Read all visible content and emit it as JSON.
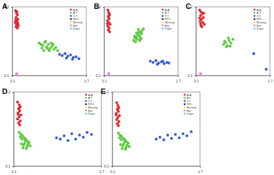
{
  "chart_data": [
    {
      "type": "scatter",
      "title": "A",
      "marker": "circle",
      "grid": false,
      "xlim": [
        0.1,
        1.7
      ],
      "ylim": [
        0.1,
        1.2
      ],
      "xticks": [
        0.1,
        1.7
      ],
      "yticks": [
        0.1,
        1.2
      ],
      "series": [
        {
          "name": "A:A",
          "color": "#e8262b",
          "x": [
            0.17,
            0.19,
            0.21,
            0.18,
            0.22,
            0.2,
            0.16,
            0.19,
            0.23,
            0.18,
            0.21,
            0.2,
            0.17,
            0.22
          ],
          "values": [
            1.14,
            1.1,
            1.07,
            1.03,
            1.0,
            0.97,
            0.95,
            0.92,
            0.9,
            0.88,
            0.86,
            1.12,
            0.99,
            0.94
          ]
        },
        {
          "name": "A:T",
          "color": "#5ccf3a",
          "x": [
            0.68,
            0.72,
            0.76,
            0.8,
            0.84,
            0.88,
            0.92,
            0.96,
            1.0,
            1.04,
            0.74,
            0.82,
            0.9,
            0.98,
            0.78,
            0.86,
            0.94,
            1.08
          ],
          "values": [
            0.62,
            0.6,
            0.58,
            0.63,
            0.56,
            0.6,
            0.54,
            0.57,
            0.52,
            0.55,
            0.54,
            0.65,
            0.5,
            0.6,
            0.5,
            0.53,
            0.62,
            0.5
          ]
        },
        {
          "name": "T:T",
          "color": "#2f5de0",
          "x": [
            1.12,
            1.18,
            1.24,
            1.3,
            1.36,
            1.42,
            1.48,
            1.54,
            1.27,
            1.4
          ],
          "values": [
            0.44,
            0.42,
            0.45,
            0.41,
            0.43,
            0.39,
            0.4,
            0.37,
            0.38,
            0.36
          ]
        },
        {
          "name": "NTC",
          "color": "#1a1a6e",
          "x": [],
          "values": []
        },
        {
          "name": "Missing",
          "color": "#f5e642",
          "x": [],
          "values": []
        },
        {
          "name": "Ref",
          "color": "#f07cf0",
          "x": [
            0.19
          ],
          "values": [
            0.13
          ]
        },
        {
          "name": "Dupe",
          "color": "#3fd6e0",
          "x": [],
          "values": []
        }
      ]
    },
    {
      "type": "scatter",
      "title": "B",
      "marker": "circle",
      "grid": false,
      "xlim": [
        0.1,
        1.7
      ],
      "ylim": [
        0.1,
        1.2
      ],
      "xticks": [
        0.1,
        1.7
      ],
      "yticks": [
        0.1,
        1.2
      ],
      "series": [
        {
          "name": "A:A",
          "color": "#e8262b",
          "x": [
            0.18,
            0.2,
            0.22,
            0.19,
            0.21,
            0.17,
            0.2,
            0.23,
            0.18,
            0.21,
            0.19,
            0.22,
            0.2,
            0.17
          ],
          "values": [
            1.15,
            1.11,
            1.08,
            1.04,
            1.01,
            0.98,
            0.95,
            0.92,
            0.89,
            0.86,
            0.83,
            0.8,
            1.06,
            0.93
          ]
        },
        {
          "name": "A:T",
          "color": "#5ccf3a",
          "x": [
            0.74,
            0.77,
            0.8,
            0.83,
            0.86,
            0.89,
            0.92,
            0.95,
            0.78,
            0.82,
            0.85,
            0.88,
            0.91,
            0.76,
            0.84,
            0.87,
            0.8,
            0.9
          ],
          "values": [
            0.66,
            0.7,
            0.72,
            0.76,
            0.74,
            0.79,
            0.82,
            0.85,
            0.64,
            0.68,
            0.8,
            0.71,
            0.77,
            0.73,
            0.84,
            0.66,
            0.78,
            0.69
          ]
        },
        {
          "name": "T:T",
          "color": "#2f5de0",
          "x": [
            1.1,
            1.16,
            1.22,
            1.28,
            1.34,
            1.4,
            1.46,
            1.5,
            1.25,
            1.37
          ],
          "values": [
            0.33,
            0.31,
            0.34,
            0.3,
            0.32,
            0.29,
            0.31,
            0.3,
            0.28,
            0.33
          ]
        },
        {
          "name": "NTC",
          "color": "#1a1a6e",
          "x": [],
          "values": []
        },
        {
          "name": "Missing",
          "color": "#f5e642",
          "x": [],
          "values": []
        },
        {
          "name": "Ref",
          "color": "#f07cf0",
          "x": [
            0.2
          ],
          "values": [
            0.13
          ]
        },
        {
          "name": "Dupe",
          "color": "#3fd6e0",
          "x": [],
          "values": []
        }
      ]
    },
    {
      "type": "scatter",
      "title": "C",
      "marker": "circle",
      "grid": false,
      "xlim": [
        0.1,
        1.7
      ],
      "ylim": [
        0.1,
        1.2
      ],
      "xticks": [
        0.1,
        1.7
      ],
      "yticks": [
        0.1,
        1.2
      ],
      "series": [
        {
          "name": "A:A",
          "color": "#e8262b",
          "x": [
            0.18,
            0.21,
            0.24,
            0.2,
            0.26,
            0.22,
            0.19,
            0.25,
            0.28,
            0.21,
            0.23,
            0.18,
            0.27,
            0.2
          ],
          "values": [
            1.15,
            1.12,
            1.09,
            1.06,
            1.03,
            1.0,
            0.97,
            0.95,
            0.92,
            0.9,
            0.88,
            1.02,
            1.1,
            0.93
          ]
        },
        {
          "name": "A:T",
          "color": "#5ccf3a",
          "x": [
            0.7,
            0.74,
            0.78,
            0.82,
            0.86,
            0.9,
            0.76,
            0.8,
            0.84,
            0.72
          ],
          "values": [
            0.6,
            0.63,
            0.58,
            0.66,
            0.62,
            0.68,
            0.56,
            0.7,
            0.57,
            0.65
          ]
        },
        {
          "name": "T:T",
          "color": "#2f5de0",
          "x": [
            1.35,
            1.62
          ],
          "values": [
            0.45,
            0.2
          ]
        },
        {
          "name": "NTC",
          "color": "#1a1a6e",
          "x": [],
          "values": []
        },
        {
          "name": "Missing",
          "color": "#f5e642",
          "x": [],
          "values": []
        },
        {
          "name": "Ref",
          "color": "#f07cf0",
          "x": [
            0.2
          ],
          "values": [
            0.13
          ]
        },
        {
          "name": "Dupe",
          "color": "#3fd6e0",
          "x": [],
          "values": []
        }
      ]
    },
    {
      "type": "scatter",
      "title": "D",
      "marker": "circle",
      "grid": false,
      "xlim": [
        0.1,
        1.7
      ],
      "ylim": [
        0.1,
        1.2
      ],
      "xticks": [
        0.1,
        1.7
      ],
      "yticks": [
        0.1,
        1.2
      ],
      "series": [
        {
          "name": "A:A",
          "color": "#e8262b",
          "x": [
            0.17,
            0.2,
            0.22,
            0.19,
            0.21,
            0.18,
            0.23,
            0.2,
            0.17,
            0.22,
            0.19,
            0.21,
            0.2,
            0.18
          ],
          "values": [
            1.05,
            1.01,
            0.98,
            0.95,
            0.92,
            0.89,
            0.86,
            0.83,
            0.8,
            0.77,
            0.74,
            0.71,
            0.96,
            0.87
          ]
        },
        {
          "name": "A:T",
          "color": "#5ccf3a",
          "x": [
            0.2,
            0.23,
            0.26,
            0.29,
            0.32,
            0.35,
            0.38,
            0.24,
            0.28,
            0.31,
            0.34,
            0.22,
            0.27,
            0.3,
            0.36,
            0.25,
            0.33,
            0.4
          ],
          "values": [
            0.6,
            0.57,
            0.55,
            0.52,
            0.5,
            0.47,
            0.45,
            0.43,
            0.41,
            0.48,
            0.39,
            0.53,
            0.37,
            0.44,
            0.42,
            0.5,
            0.36,
            0.4
          ]
        },
        {
          "name": "T:T",
          "color": "#2f5de0",
          "x": [
            0.88,
            0.95,
            1.02,
            1.09,
            1.16,
            1.23,
            1.3,
            1.37,
            1.44,
            1.52
          ],
          "values": [
            0.52,
            0.5,
            0.55,
            0.48,
            0.58,
            0.5,
            0.56,
            0.53,
            0.6,
            0.57
          ]
        },
        {
          "name": "NTC",
          "color": "#1a1a6e",
          "x": [],
          "values": []
        },
        {
          "name": "Missing",
          "color": "#f5e642",
          "x": [],
          "values": []
        },
        {
          "name": "Ref",
          "color": "#f07cf0",
          "x": [],
          "values": []
        },
        {
          "name": "Dupe",
          "color": "#3fd6e0",
          "x": [],
          "values": []
        }
      ]
    },
    {
      "type": "scatter",
      "title": "E",
      "marker": "circle",
      "grid": false,
      "xlim": [
        0.1,
        1.7
      ],
      "ylim": [
        0.1,
        1.2
      ],
      "xticks": [
        0.1,
        1.7
      ],
      "yticks": [
        0.1,
        1.2
      ],
      "series": [
        {
          "name": "A:A",
          "color": "#e8262b",
          "x": [
            0.18,
            0.2,
            0.22,
            0.19,
            0.21,
            0.17,
            0.23,
            0.2,
            0.18,
            0.22,
            0.19,
            0.21,
            0.2,
            0.17
          ],
          "values": [
            1.04,
            1.0,
            0.97,
            0.94,
            0.91,
            0.88,
            0.85,
            0.82,
            0.79,
            0.76,
            0.73,
            0.7,
            0.95,
            0.86
          ]
        },
        {
          "name": "A:T",
          "color": "#5ccf3a",
          "x": [
            0.21,
            0.24,
            0.27,
            0.3,
            0.33,
            0.36,
            0.39,
            0.25,
            0.29,
            0.32,
            0.35,
            0.23,
            0.28,
            0.31,
            0.37,
            0.26,
            0.34,
            0.41
          ],
          "values": [
            0.59,
            0.56,
            0.54,
            0.51,
            0.49,
            0.46,
            0.44,
            0.42,
            0.4,
            0.47,
            0.38,
            0.52,
            0.36,
            0.43,
            0.41,
            0.49,
            0.35,
            0.39
          ]
        },
        {
          "name": "T:T",
          "color": "#2f5de0",
          "x": [
            0.9,
            0.97,
            1.04,
            1.11,
            1.18,
            1.25,
            1.32,
            1.39,
            1.46,
            1.54
          ],
          "values": [
            0.5,
            0.53,
            0.49,
            0.56,
            0.51,
            0.57,
            0.52,
            0.58,
            0.55,
            0.61
          ]
        },
        {
          "name": "NTC",
          "color": "#1a1a6e",
          "x": [],
          "values": []
        },
        {
          "name": "Missing",
          "color": "#f5e642",
          "x": [],
          "values": []
        },
        {
          "name": "Ref",
          "color": "#f07cf0",
          "x": [],
          "values": []
        },
        {
          "name": "Dupe",
          "color": "#3fd6e0",
          "x": [],
          "values": []
        }
      ]
    }
  ]
}
